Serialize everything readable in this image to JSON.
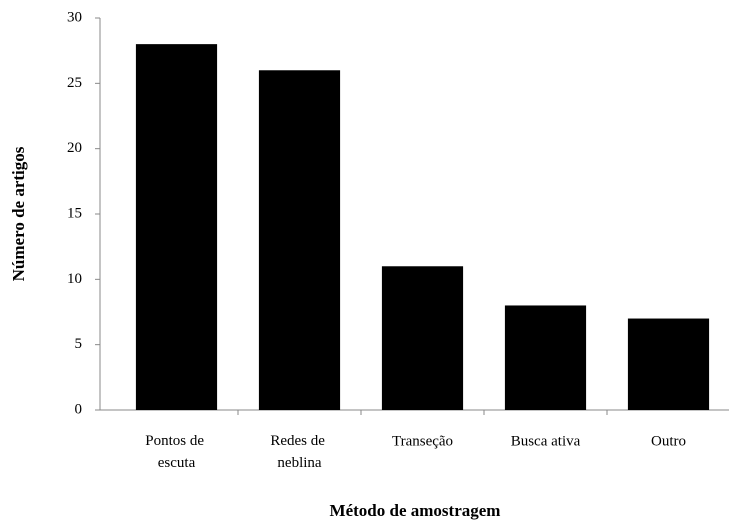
{
  "chart_data": {
    "type": "bar",
    "categories": [
      "Pontos de escuta",
      "Redes de neblina",
      "Transeção",
      "Busca ativa",
      "Outro"
    ],
    "values": [
      28,
      26,
      11,
      8,
      7
    ],
    "color": "#000000",
    "ylim": [
      0,
      30
    ],
    "yticks": [
      0,
      5,
      10,
      15,
      20,
      25,
      30
    ],
    "grid": false,
    "x_label": "Método de amostragem",
    "y_label": "Número de artigos"
  }
}
